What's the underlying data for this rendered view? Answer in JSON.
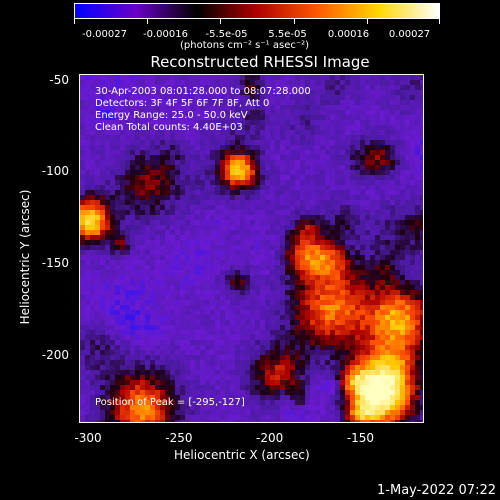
{
  "colorbar": {
    "ticks": [
      "-0.00027",
      "-0.00016",
      "-5.5e-05",
      "5.5e-05",
      "0.00016",
      "0.00027"
    ],
    "unit": "(photons cm⁻² s⁻¹ asec⁻²)",
    "colors": [
      "#0000ff",
      "#6a00c8",
      "#000000",
      "#b00000",
      "#ff5a00",
      "#ffd700",
      "#ffffff"
    ]
  },
  "chart_data": {
    "type": "heatmap",
    "title": "Reconstructed RHESSI Image",
    "xlabel": "Heliocentric X (arcsec)",
    "ylabel": "Heliocentric Y (arcsec)",
    "xlim": [
      -305,
      -115
    ],
    "ylim": [
      -237,
      -47
    ],
    "xticks": [
      "-300",
      "-250",
      "-200",
      "-150"
    ],
    "yticks": [
      "-50",
      "-100",
      "-150",
      "-200"
    ],
    "annotations": {
      "time_range": "30-Apr-2003 08:01:28.000 to 08:07:28.000",
      "detectors": "Detectors: 3F 4F 5F 6F 7F 8F, Att 0",
      "energy": "Energy Range: 25.0 - 50.0 keV",
      "method": "Clean     Total counts: 4.40E+03",
      "peak": "Position of Peak = [-295,-127]"
    },
    "peak": [
      -295,
      -127
    ]
  },
  "footer": {
    "timestamp": "1-May-2022 07:22"
  }
}
